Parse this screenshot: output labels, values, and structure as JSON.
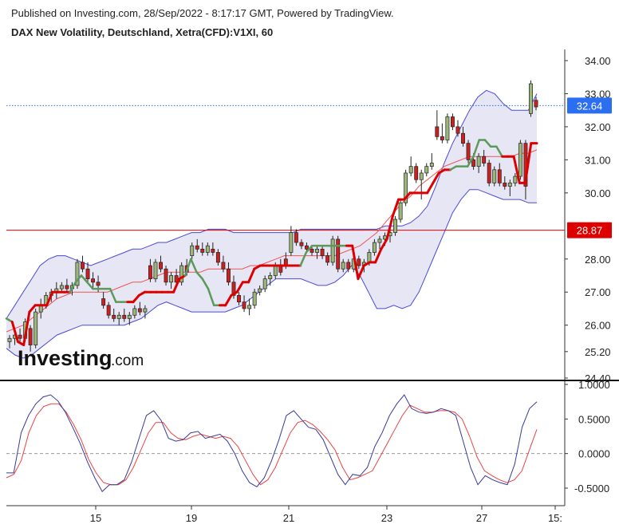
{
  "header": {
    "published": "Published on Investing.com, 28/Sep/2022 - 8:17:17 GMT, Powered by TradingView.",
    "instrument": "DAX New Volatility, Deutschland, Xetra(CFD):V1XI, 60"
  },
  "logo": {
    "main": "Investing",
    "sub": ".com"
  },
  "colors": {
    "up_candle": "#9bb77a",
    "down_candle": "#cc1f1f",
    "band_fill": "#e6e6f4",
    "band_line": "#4a4ad8",
    "supertrend_up": "#5b9a5b",
    "supertrend_down": "#dd0000",
    "sma": "#ee5555",
    "last_price": "#2b6ef0",
    "level": "#dd0000",
    "stoch_k": "#3a3a9a",
    "stoch_d": "#e94444"
  },
  "chart_data": [
    {
      "type": "candlestick",
      "title": "DAX New Volatility, Deutschland, Xetra(CFD):V1XI, 60",
      "ylim": [
        24.4,
        34.6
      ],
      "y_ticks": [
        "34.00",
        "33.00",
        "32.00",
        "31.00",
        "30.00",
        "28.00",
        "27.00",
        "26.00",
        "25.20",
        "24.40"
      ],
      "x_ticks": [
        "15",
        "19",
        "21",
        "23",
        "27",
        "15:"
      ],
      "last_price": {
        "value": 32.64,
        "label": "32.64"
      },
      "level": {
        "value": 28.87,
        "label": "28.87"
      },
      "candles": [
        [
          25.5,
          25.7,
          25.3,
          25.6
        ],
        [
          25.6,
          25.8,
          25.4,
          25.7
        ],
        [
          25.7,
          25.9,
          25.5,
          25.6
        ],
        [
          25.6,
          26.2,
          25.5,
          26.1
        ],
        [
          25.9,
          26.0,
          25.2,
          25.4
        ],
        [
          25.4,
          26.5,
          25.3,
          26.4
        ],
        [
          26.4,
          26.8,
          26.2,
          26.6
        ],
        [
          26.6,
          27.0,
          26.5,
          26.9
        ],
        [
          26.9,
          27.1,
          26.7,
          27.0
        ],
        [
          27.0,
          27.3,
          26.8,
          27.1
        ],
        [
          27.1,
          27.3,
          27.0,
          27.2
        ],
        [
          27.2,
          27.4,
          27.0,
          27.1
        ],
        [
          27.1,
          27.3,
          26.9,
          27.2
        ],
        [
          27.2,
          28.0,
          27.1,
          27.9
        ],
        [
          27.9,
          28.1,
          27.6,
          27.7
        ],
        [
          27.7,
          27.9,
          27.3,
          27.4
        ],
        [
          27.4,
          27.6,
          27.1,
          27.3
        ],
        [
          27.3,
          27.5,
          27.0,
          27.2
        ],
        [
          26.8,
          27.0,
          26.5,
          26.6
        ],
        [
          26.6,
          26.7,
          26.2,
          26.3
        ],
        [
          26.3,
          26.5,
          26.1,
          26.2
        ],
        [
          26.2,
          26.4,
          26.0,
          26.3
        ],
        [
          26.3,
          26.5,
          26.1,
          26.2
        ],
        [
          26.2,
          26.4,
          26.0,
          26.3
        ],
        [
          26.3,
          26.6,
          26.2,
          26.5
        ],
        [
          26.5,
          26.7,
          26.3,
          26.4
        ],
        [
          26.4,
          26.6,
          26.2,
          26.5
        ],
        [
          27.8,
          28.0,
          27.3,
          27.4
        ],
        [
          27.4,
          28.0,
          27.3,
          27.9
        ],
        [
          27.9,
          28.1,
          27.6,
          27.7
        ],
        [
          27.7,
          27.8,
          27.2,
          27.3
        ],
        [
          27.3,
          27.6,
          27.1,
          27.5
        ],
        [
          27.5,
          27.7,
          27.2,
          27.3
        ],
        [
          27.3,
          27.9,
          27.2,
          27.8
        ],
        [
          27.8,
          28.0,
          27.5,
          27.6
        ],
        [
          28.1,
          28.5,
          28.0,
          28.4
        ],
        [
          28.4,
          28.6,
          28.2,
          28.3
        ],
        [
          28.3,
          28.5,
          28.1,
          28.2
        ],
        [
          28.2,
          28.5,
          28.1,
          28.4
        ],
        [
          28.3,
          28.5,
          28.1,
          28.2
        ],
        [
          28.2,
          28.3,
          27.8,
          27.9
        ],
        [
          27.9,
          28.1,
          27.6,
          27.7
        ],
        [
          27.7,
          27.9,
          27.2,
          27.3
        ],
        [
          27.3,
          27.5,
          26.8,
          26.9
        ],
        [
          26.9,
          27.0,
          26.6,
          26.7
        ],
        [
          26.7,
          26.9,
          26.4,
          26.5
        ],
        [
          26.5,
          26.8,
          26.3,
          26.6
        ],
        [
          26.6,
          27.1,
          26.5,
          27.0
        ],
        [
          27.0,
          27.2,
          26.9,
          27.1
        ],
        [
          27.1,
          27.5,
          27.0,
          27.4
        ],
        [
          27.4,
          27.6,
          27.2,
          27.5
        ],
        [
          27.5,
          27.9,
          27.4,
          27.8
        ],
        [
          27.8,
          28.0,
          27.5,
          27.6
        ],
        [
          28.0,
          28.2,
          27.7,
          27.8
        ],
        [
          28.2,
          29.0,
          28.1,
          28.8
        ],
        [
          28.8,
          28.9,
          28.4,
          28.5
        ],
        [
          28.5,
          28.6,
          28.3,
          28.4
        ],
        [
          28.4,
          28.5,
          28.2,
          28.3
        ],
        [
          28.3,
          28.4,
          28.1,
          28.2
        ],
        [
          28.2,
          28.4,
          28.0,
          28.3
        ],
        [
          28.3,
          28.4,
          28.0,
          28.1
        ],
        [
          28.1,
          28.2,
          27.8,
          27.9
        ],
        [
          27.9,
          28.7,
          27.8,
          28.6
        ],
        [
          28.6,
          28.7,
          27.6,
          27.7
        ],
        [
          27.7,
          28.0,
          27.6,
          27.9
        ],
        [
          27.9,
          28.0,
          27.6,
          27.7
        ],
        [
          27.7,
          28.1,
          27.6,
          28.0
        ],
        [
          28.0,
          28.1,
          27.7,
          27.8
        ],
        [
          27.8,
          28.0,
          27.6,
          27.9
        ],
        [
          27.9,
          28.3,
          27.8,
          28.2
        ],
        [
          28.2,
          28.6,
          28.1,
          28.5
        ],
        [
          28.5,
          28.7,
          28.3,
          28.6
        ],
        [
          28.6,
          28.8,
          28.4,
          28.7
        ],
        [
          28.7,
          28.9,
          28.5,
          28.8
        ],
        [
          28.8,
          29.3,
          28.7,
          29.2
        ],
        [
          29.2,
          29.8,
          29.1,
          29.7
        ],
        [
          29.7,
          30.7,
          29.6,
          30.6
        ],
        [
          30.6,
          31.1,
          30.5,
          30.8
        ],
        [
          30.8,
          30.9,
          30.3,
          30.4
        ],
        [
          30.4,
          30.7,
          29.8,
          30.6
        ],
        [
          30.6,
          30.9,
          30.5,
          30.8
        ],
        [
          30.8,
          31.2,
          30.7,
          30.9
        ],
        [
          32.0,
          32.5,
          31.6,
          31.7
        ],
        [
          31.7,
          32.1,
          31.5,
          31.6
        ],
        [
          31.6,
          32.4,
          31.5,
          32.3
        ],
        [
          32.3,
          32.4,
          31.9,
          32.0
        ],
        [
          32.0,
          32.2,
          31.7,
          31.8
        ],
        [
          31.8,
          32.0,
          31.4,
          31.5
        ],
        [
          31.5,
          31.6,
          30.9,
          31.0
        ],
        [
          31.0,
          31.2,
          30.7,
          30.8
        ],
        [
          30.8,
          31.2,
          30.6,
          31.1
        ],
        [
          31.1,
          31.3,
          30.8,
          30.9
        ],
        [
          30.9,
          31.0,
          30.2,
          30.3
        ],
        [
          30.3,
          30.8,
          30.2,
          30.7
        ],
        [
          30.7,
          30.9,
          30.2,
          30.3
        ],
        [
          30.3,
          30.5,
          30.1,
          30.2
        ],
        [
          30.2,
          30.4,
          29.9,
          30.3
        ],
        [
          30.3,
          30.6,
          30.2,
          30.5
        ],
        [
          30.5,
          31.6,
          30.4,
          31.5
        ],
        [
          31.5,
          31.6,
          29.8,
          30.2
        ],
        [
          32.4,
          33.4,
          32.3,
          33.3
        ],
        [
          32.8,
          32.9,
          32.5,
          32.6
        ]
      ],
      "bollinger_upper": [
        26.2,
        26.6,
        27.0,
        27.4,
        27.8,
        28.0,
        28.1,
        28.1,
        28.0,
        27.9,
        27.8,
        27.9,
        28.0,
        28.1,
        28.2,
        28.3,
        28.3,
        28.4,
        28.5,
        28.5,
        28.6,
        28.7,
        28.8,
        28.8,
        28.9,
        28.9,
        28.9,
        28.8,
        28.8,
        28.8,
        28.8,
        28.8,
        28.8,
        28.8,
        28.8,
        28.9,
        28.9,
        28.9,
        28.9,
        28.9,
        28.9,
        28.9,
        28.9,
        28.9,
        28.9,
        29.0,
        29.0,
        29.0,
        29.1,
        29.3,
        29.6,
        30.2,
        30.9,
        31.5,
        32.0,
        32.5,
        32.9,
        33.1,
        33.0,
        32.7,
        32.5,
        32.5,
        32.5,
        33.0
      ],
      "bollinger_lower": [
        25.3,
        25.1,
        25.0,
        25.1,
        25.3,
        25.5,
        25.7,
        25.8,
        25.9,
        26.0,
        26.0,
        26.0,
        26.0,
        26.0,
        26.0,
        26.1,
        26.2,
        26.4,
        26.6,
        26.7,
        26.6,
        26.5,
        26.4,
        26.4,
        26.4,
        26.4,
        26.4,
        26.5,
        26.6,
        26.8,
        27.0,
        27.2,
        27.4,
        27.4,
        27.4,
        27.4,
        27.3,
        27.2,
        27.2,
        27.3,
        27.5,
        27.8,
        27.5,
        27.0,
        26.5,
        26.5,
        26.6,
        26.5,
        26.6,
        27.0,
        27.6,
        28.2,
        28.8,
        29.4,
        29.8,
        30.1,
        30.1,
        30.0,
        29.9,
        29.8,
        29.8,
        29.8,
        29.7,
        29.7
      ],
      "sma": [
        25.8,
        25.9,
        26.0,
        26.2,
        26.4,
        26.6,
        26.8,
        26.9,
        27.0,
        27.0,
        27.0,
        27.0,
        27.0,
        27.1,
        27.2,
        27.3,
        27.3,
        27.4,
        27.5,
        27.6,
        27.6,
        27.6,
        27.6,
        27.6,
        27.7,
        27.7,
        27.7,
        27.7,
        27.7,
        27.8,
        27.8,
        27.9,
        28.0,
        28.1,
        28.1,
        28.1,
        28.1,
        28.1,
        28.1,
        28.1,
        28.2,
        28.3,
        28.4,
        28.6,
        28.8,
        29.1,
        29.4,
        29.7,
        29.9,
        30.2,
        30.4,
        30.6,
        30.8,
        30.9,
        31.0,
        31.1,
        31.1,
        31.1,
        31.1,
        31.1,
        31.1,
        31.2,
        31.2,
        31.3
      ],
      "supertrend": [
        26.2,
        26.1,
        25.5,
        25.4,
        26.4,
        26.6,
        26.6,
        26.6,
        27.0,
        27.0,
        27.0,
        27.0,
        27.3,
        27.5,
        27.3,
        27.1,
        27.1,
        27.1,
        27.1,
        26.7,
        26.7,
        26.7,
        26.7,
        26.9,
        27.0,
        27.0,
        27.0,
        27.0,
        27.0,
        27.0,
        27.4,
        27.5,
        28.0,
        27.6,
        27.4,
        27.1,
        26.6,
        26.6,
        26.6,
        26.9,
        27.0,
        27.3,
        27.3,
        27.7,
        27.8,
        27.8,
        27.8,
        27.8,
        27.8,
        27.8,
        27.8,
        27.8,
        28.2,
        28.4,
        28.4,
        28.4,
        28.4,
        28.4,
        28.4,
        28.4,
        28.4,
        27.4,
        27.8,
        27.9,
        27.9,
        28.3,
        28.6,
        29.3,
        29.8,
        29.8,
        30.0,
        30.0,
        30.0,
        30.0,
        30.3,
        30.6,
        30.7,
        30.7,
        30.8,
        30.8,
        30.8,
        31.1,
        31.6,
        31.6,
        31.4,
        31.4,
        31.1,
        31.1,
        31.1,
        30.3,
        30.3,
        31.5,
        31.5
      ],
      "supertrend_color": [
        "up",
        "up",
        "down",
        "down",
        "down",
        "down",
        "down",
        "down",
        "down",
        "down",
        "down",
        "down",
        "up",
        "up",
        "up",
        "up",
        "up",
        "up",
        "up",
        "up",
        "up",
        "up",
        "down",
        "down",
        "down",
        "down",
        "down",
        "down",
        "down",
        "down",
        "down",
        "down",
        "up",
        "up",
        "up",
        "up",
        "up",
        "up",
        "down",
        "down",
        "down",
        "down",
        "down",
        "down",
        "down",
        "down",
        "down",
        "down",
        "down",
        "down",
        "down",
        "down",
        "up",
        "up",
        "up",
        "up",
        "up",
        "up",
        "up",
        "up",
        "down",
        "down",
        "down",
        "down",
        "down",
        "down",
        "down",
        "down",
        "down",
        "down",
        "down",
        "down",
        "down",
        "down",
        "down",
        "down",
        "down",
        "down",
        "up",
        "up",
        "up",
        "up",
        "up",
        "up",
        "up",
        "up",
        "up",
        "down",
        "down",
        "down",
        "down",
        "down",
        "down"
      ]
    },
    {
      "type": "line",
      "title": "",
      "ylim": [
        -0.68,
        1.0
      ],
      "y_ticks": [
        "1.0000",
        "0.5000",
        "0.0000",
        "-0.5000"
      ],
      "zero_line": 0.0,
      "series": [
        {
          "values": [
            -0.28,
            -0.28,
            0.3,
            0.55,
            0.72,
            0.82,
            0.85,
            0.76,
            0.6,
            0.38,
            0.15,
            -0.12,
            -0.35,
            -0.55,
            -0.45,
            -0.45,
            -0.38,
            -0.12,
            0.22,
            0.55,
            0.62,
            0.48,
            0.22,
            0.18,
            0.2,
            0.3,
            0.32,
            0.22,
            0.25,
            0.28,
            0.18,
            0.0,
            -0.25,
            -0.42,
            -0.48,
            -0.35,
            -0.1,
            0.2,
            0.55,
            0.62,
            0.5,
            0.38,
            0.35,
            0.2,
            -0.05,
            -0.3,
            -0.45,
            -0.3,
            -0.32,
            -0.2,
            0.1,
            0.3,
            0.55,
            0.72,
            0.85,
            0.65,
            0.6,
            0.58,
            0.6,
            0.65,
            0.62,
            0.55,
            0.18,
            -0.2,
            -0.45,
            -0.32,
            -0.38,
            -0.42,
            -0.45,
            -0.15,
            0.38,
            0.65,
            0.75
          ]
        },
        {
          "values": [
            -0.35,
            -0.3,
            -0.1,
            0.3,
            0.55,
            0.68,
            0.72,
            0.72,
            0.6,
            0.42,
            0.2,
            -0.08,
            -0.28,
            -0.42,
            -0.45,
            -0.45,
            -0.38,
            -0.2,
            0.05,
            0.3,
            0.45,
            0.45,
            0.3,
            0.22,
            0.2,
            0.25,
            0.28,
            0.25,
            0.22,
            0.25,
            0.22,
            0.1,
            -0.1,
            -0.3,
            -0.45,
            -0.38,
            -0.2,
            0.05,
            0.3,
            0.45,
            0.48,
            0.42,
            0.32,
            0.2,
            0.05,
            -0.2,
            -0.38,
            -0.35,
            -0.3,
            -0.25,
            -0.05,
            0.15,
            0.35,
            0.55,
            0.7,
            0.65,
            0.6,
            0.6,
            0.62,
            0.62,
            0.6,
            0.5,
            0.25,
            -0.05,
            -0.25,
            -0.32,
            -0.38,
            -0.42,
            -0.38,
            -0.25,
            0.05,
            0.35
          ]
        }
      ]
    }
  ]
}
